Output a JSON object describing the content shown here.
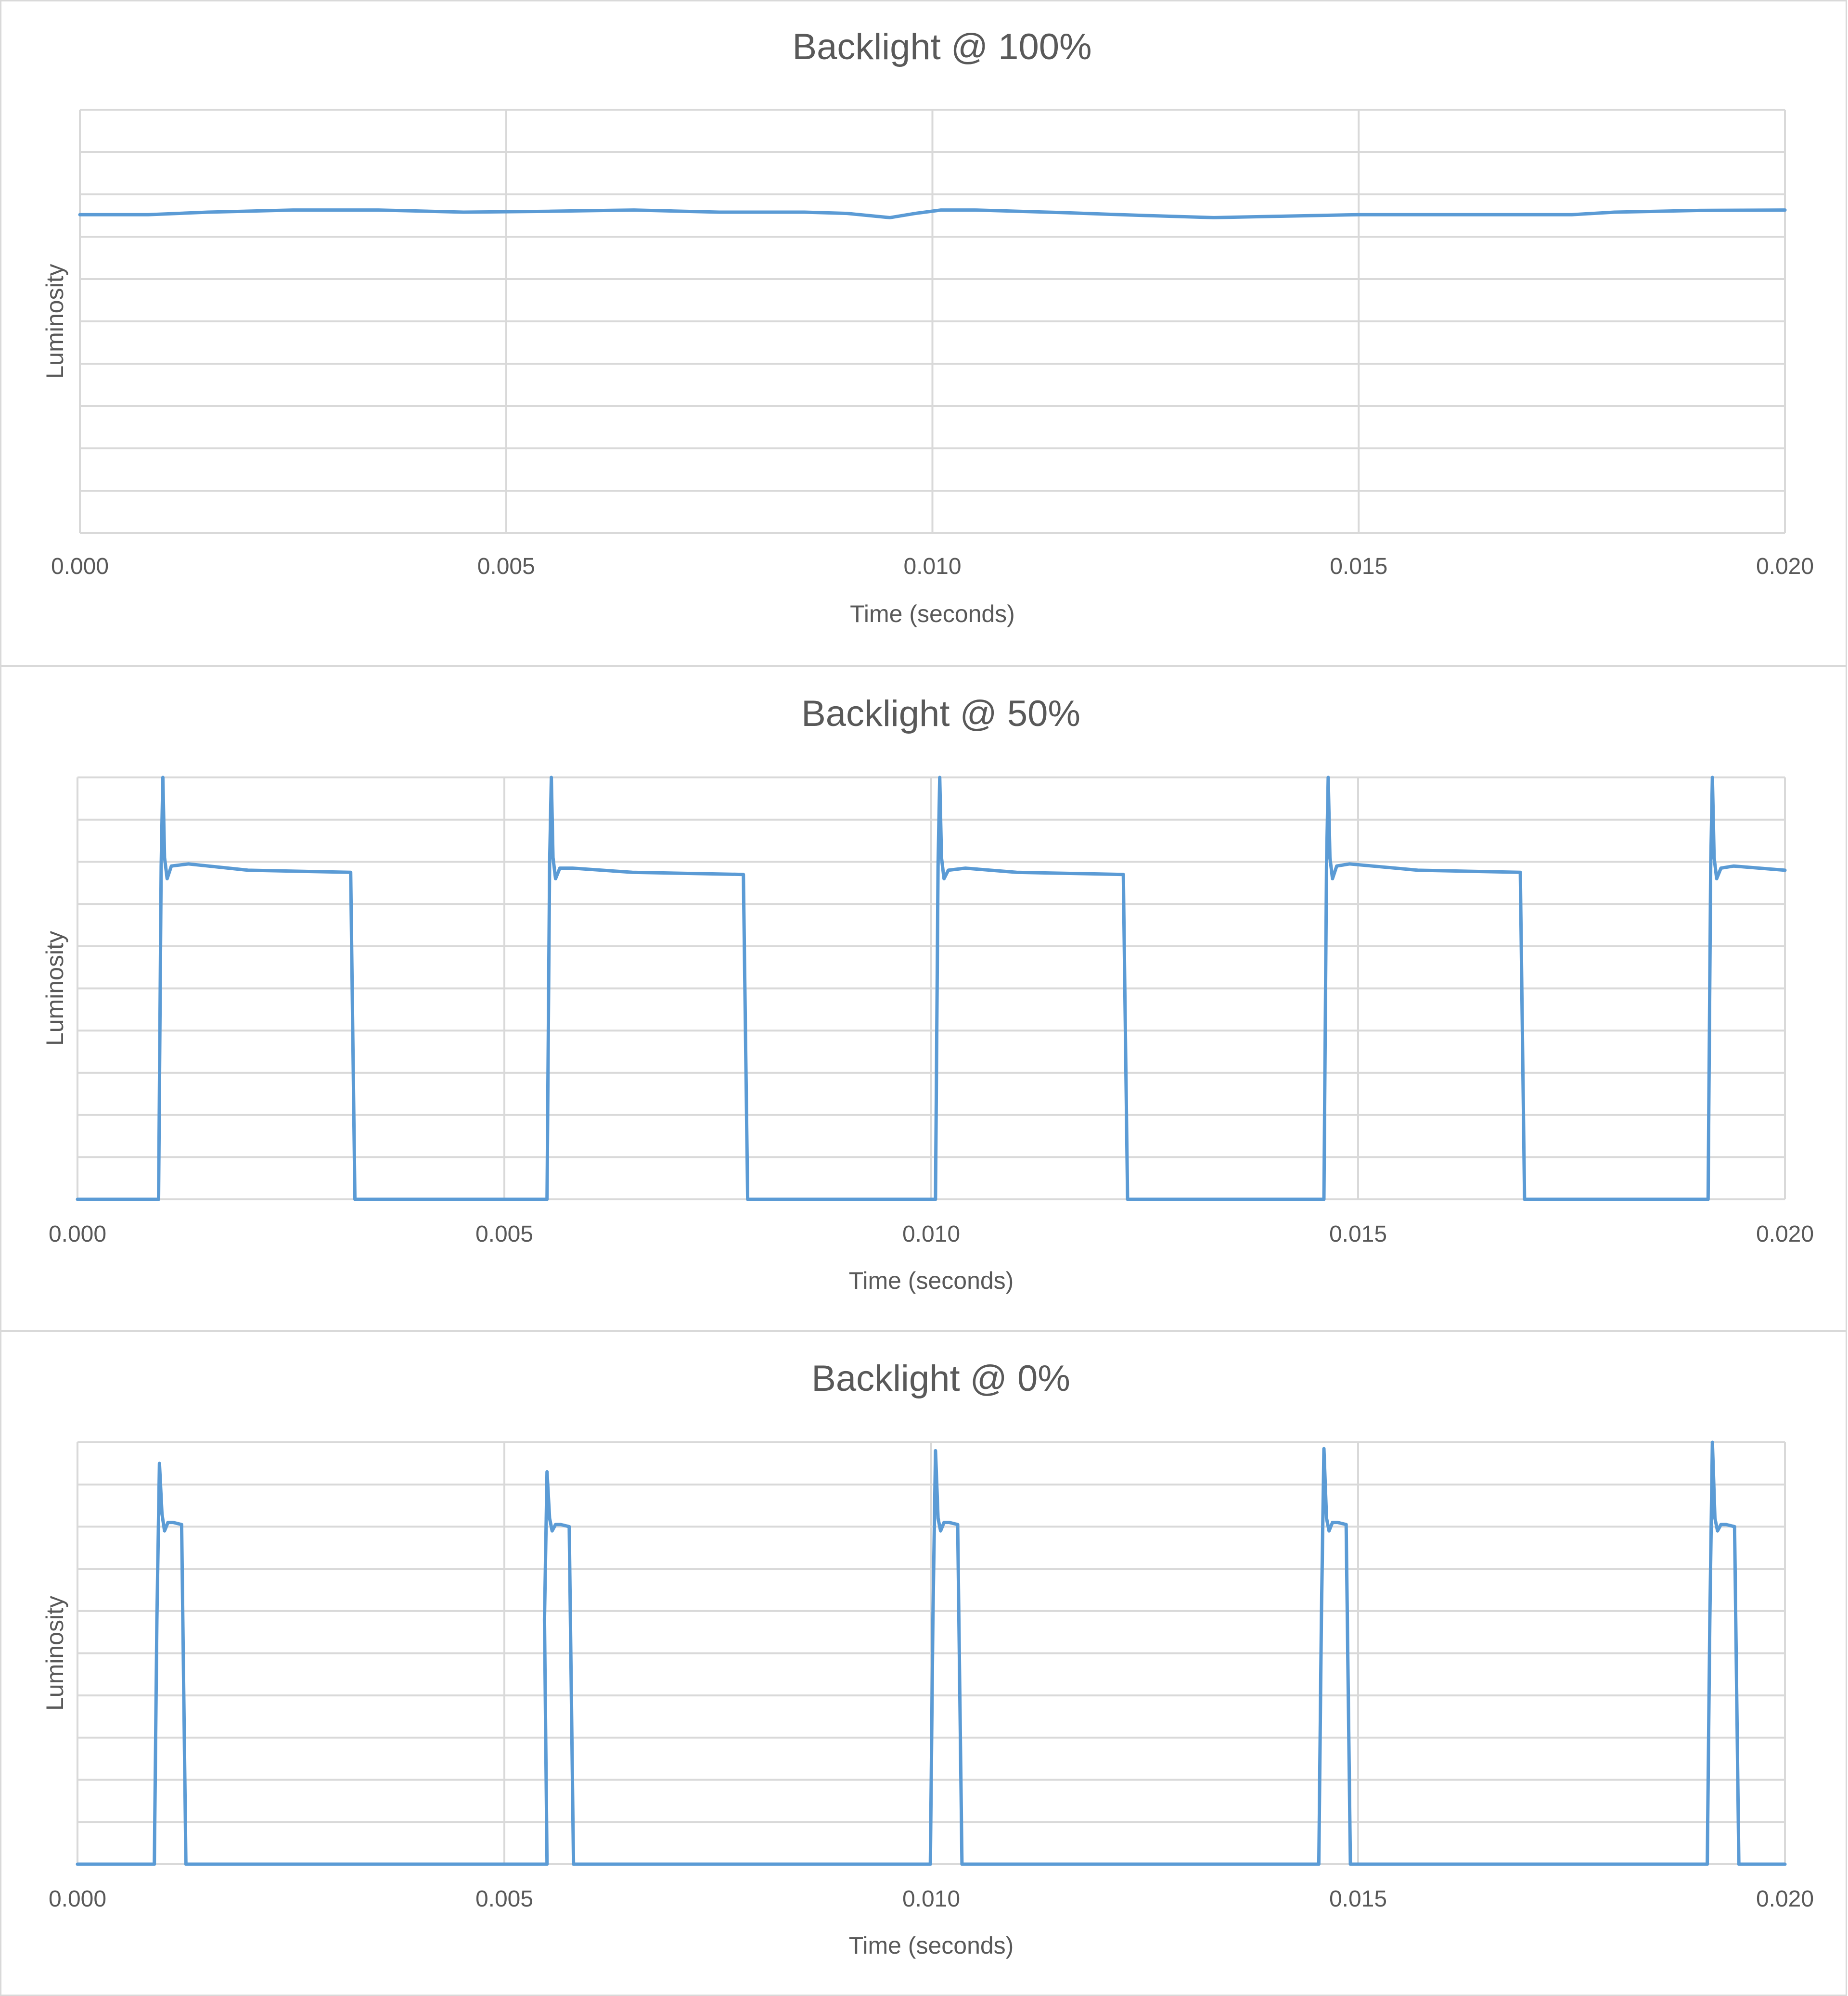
{
  "chart_data": [
    {
      "type": "line",
      "title": "Backlight @ 100%",
      "xlabel": "Time (seconds)",
      "ylabel": "Luminosity",
      "xlim": [
        0,
        0.02
      ],
      "ylim": [
        0,
        10
      ],
      "y_gridlines": 10,
      "grid": "horizontal and vertical",
      "x_ticks": [
        "0.000",
        "0.005",
        "0.010",
        "0.015",
        "0.020"
      ],
      "x_tick_values": [
        0,
        0.005,
        0.01,
        0.015,
        0.02
      ],
      "series": [
        {
          "color": "#5b9bd5",
          "x": [
            0,
            0.0008,
            0.0015,
            0.0025,
            0.0035,
            0.0045,
            0.0055,
            0.0065,
            0.0075,
            0.0085,
            0.009,
            0.0095,
            0.0098,
            0.0101,
            0.0105,
            0.0115,
            0.0125,
            0.0133,
            0.014,
            0.015,
            0.016,
            0.017,
            0.0175,
            0.018,
            0.019,
            0.02
          ],
          "y": [
            7.52,
            7.52,
            7.58,
            7.63,
            7.63,
            7.58,
            7.6,
            7.63,
            7.58,
            7.58,
            7.55,
            7.45,
            7.55,
            7.63,
            7.63,
            7.57,
            7.5,
            7.45,
            7.48,
            7.52,
            7.52,
            7.52,
            7.52,
            7.58,
            7.62,
            7.63
          ]
        }
      ]
    },
    {
      "type": "line",
      "title": "Backlight @ 50%",
      "xlabel": "Time (seconds)",
      "ylabel": "Luminosity",
      "xlim": [
        0,
        0.02
      ],
      "ylim": [
        0,
        10
      ],
      "y_gridlines": 10,
      "grid": "horizontal and vertical",
      "x_ticks": [
        "0.000",
        "0.005",
        "0.010",
        "0.015",
        "0.020"
      ],
      "x_tick_values": [
        0,
        0.005,
        0.01,
        0.015,
        0.02
      ],
      "series": [
        {
          "color": "#5b9bd5",
          "x": [
            0,
            0.00095,
            0.00098,
            0.001,
            0.00102,
            0.00105,
            0.0011,
            0.0013,
            0.002,
            0.0032,
            0.00325,
            0.0055,
            0.00553,
            0.00555,
            0.00557,
            0.0056,
            0.00565,
            0.0058,
            0.0065,
            0.0078,
            0.00785,
            0.01005,
            0.01008,
            0.0101,
            0.01012,
            0.01015,
            0.0102,
            0.0104,
            0.011,
            0.01225,
            0.0123,
            0.0146,
            0.01463,
            0.01465,
            0.01467,
            0.0147,
            0.01475,
            0.0149,
            0.0157,
            0.0169,
            0.01695,
            0.0191,
            0.01913,
            0.01915,
            0.01917,
            0.0192,
            0.01925,
            0.0194,
            0.02
          ],
          "y": [
            0,
            0,
            7.9,
            10,
            8.1,
            7.6,
            7.9,
            7.95,
            7.8,
            7.75,
            0,
            0,
            7.9,
            10,
            8.1,
            7.6,
            7.85,
            7.85,
            7.75,
            7.7,
            0,
            0,
            7.9,
            10,
            8.1,
            7.6,
            7.8,
            7.85,
            7.75,
            7.7,
            0,
            0,
            7.9,
            10,
            8.1,
            7.6,
            7.9,
            7.95,
            7.8,
            7.75,
            0,
            0,
            7.9,
            10,
            8.1,
            7.6,
            7.85,
            7.9,
            7.8
          ]
        }
      ]
    },
    {
      "type": "line",
      "title": "Backlight @ 0%",
      "xlabel": "Time (seconds)",
      "ylabel": "Luminosity",
      "xlim": [
        0,
        0.02
      ],
      "ylim": [
        0,
        10
      ],
      "y_gridlines": 10,
      "grid": "horizontal and vertical",
      "x_ticks": [
        "0.000",
        "0.005",
        "0.010",
        "0.015",
        "0.020"
      ],
      "x_tick_values": [
        0,
        0.005,
        0.01,
        0.015,
        0.02
      ],
      "series": [
        {
          "color": "#5b9bd5",
          "x": [
            0,
            0.0009,
            0.00093,
            0.00096,
            0.00099,
            0.00102,
            0.00106,
            0.00112,
            0.00122,
            0.00127,
            0.0055,
            0.00547,
            0.0055,
            0.00553,
            0.00556,
            0.0056,
            0.00566,
            0.00576,
            0.00581,
            0.00999,
            0.01002,
            0.01005,
            0.01008,
            0.01011,
            0.01015,
            0.01021,
            0.01031,
            0.01036,
            0.01454,
            0.01457,
            0.0146,
            0.01463,
            0.01466,
            0.0147,
            0.01476,
            0.01486,
            0.01491,
            0.01909,
            0.01912,
            0.01915,
            0.01918,
            0.01921,
            0.01925,
            0.01931,
            0.01941,
            0.01946,
            0.02
          ],
          "y": [
            0,
            0,
            5.8,
            9.5,
            8.3,
            7.9,
            8.1,
            8.1,
            8.05,
            0,
            0,
            5.8,
            9.3,
            8.2,
            7.9,
            8.05,
            8.05,
            8.0,
            0,
            0,
            5.8,
            9.8,
            8.2,
            7.9,
            8.1,
            8.1,
            8.05,
            0,
            0,
            5.8,
            9.85,
            8.2,
            7.9,
            8.1,
            8.1,
            8.05,
            0,
            0,
            5.8,
            10,
            8.2,
            7.9,
            8.05,
            8.05,
            8.0,
            0,
            0
          ]
        }
      ]
    }
  ]
}
